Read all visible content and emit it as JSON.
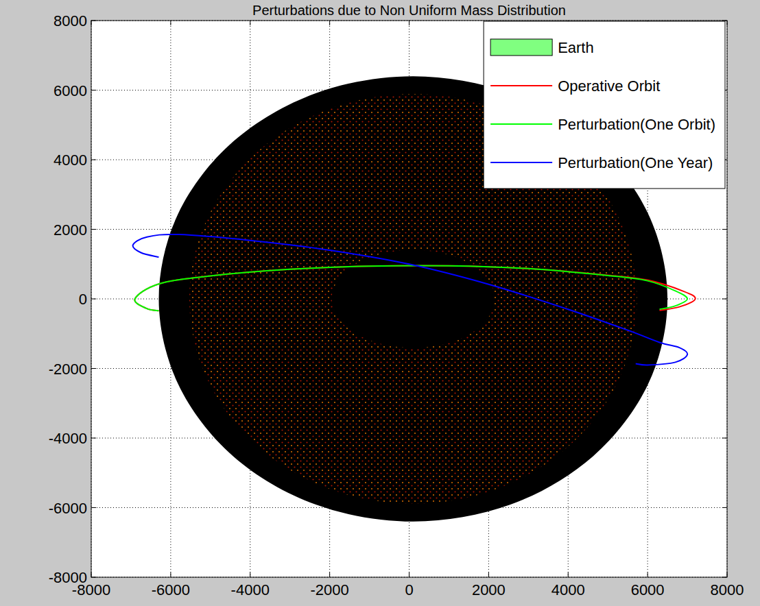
{
  "chart_data": {
    "type": "line",
    "title": "Perturbations due to Non Uniform Mass Distribution",
    "xlim": [
      -8000,
      8000
    ],
    "ylim": [
      -8000,
      8000
    ],
    "xticks": [
      -8000,
      -6000,
      -4000,
      -2000,
      0,
      2000,
      4000,
      6000,
      8000
    ],
    "yticks": [
      -8000,
      -6000,
      -4000,
      -2000,
      0,
      2000,
      4000,
      6000,
      8000
    ],
    "grid": true,
    "legend": "top-right",
    "series": [
      {
        "name": "Earth",
        "type": "area",
        "color": "#80ff80",
        "x": [
          6500,
          6013,
          4625,
          2549,
          100,
          -2349,
          -4425,
          -5813,
          -6300,
          -5813,
          -4425,
          -2349,
          100,
          2549,
          4625,
          6013
        ],
        "values": [
          0,
          2449,
          4525,
          5913,
          6400,
          5913,
          4525,
          2449,
          0,
          -2449,
          -4525,
          -5913,
          -6400,
          -5913,
          -4525,
          -2449
        ]
      },
      {
        "name": "Operative Orbit",
        "type": "line",
        "color": "#ff0000",
        "x": [
          6300,
          6800,
          7200,
          6900,
          6000,
          5000,
          3000,
          1000,
          -1000,
          -3000,
          -5000,
          -6300,
          -6900,
          -6600,
          -6300,
          null
        ],
        "values": [
          -330,
          -230,
          0,
          220,
          540,
          680,
          870,
          950,
          940,
          850,
          660,
          430,
          0,
          -280,
          -340,
          null
        ]
      },
      {
        "name": "Perturbation(One Orbit)",
        "type": "line",
        "color": "#00ff00",
        "x": [
          6300,
          6700,
          7000,
          6700,
          6000,
          5000,
          3000,
          1000,
          -1000,
          -3000,
          -5000,
          -6300,
          -6900,
          -6600,
          -6300
        ],
        "values": [
          -300,
          -200,
          0,
          230,
          520,
          670,
          870,
          950,
          940,
          850,
          660,
          430,
          0,
          -280,
          -340
        ]
      },
      {
        "name": "Perturbation(One Year)",
        "type": "line",
        "color": "#0000ff",
        "x": [
          -6300,
          -6750,
          -6950,
          -6600,
          -5800,
          -4000,
          -2000,
          0,
          2000,
          4000,
          5500,
          6300,
          6800,
          7000,
          6700,
          6000,
          5700
        ],
        "values": [
          1200,
          1330,
          1550,
          1780,
          1850,
          1680,
          1400,
          1000,
          420,
          -300,
          -900,
          -1250,
          -1400,
          -1600,
          -1820,
          -1900,
          -1860
        ]
      }
    ]
  }
}
